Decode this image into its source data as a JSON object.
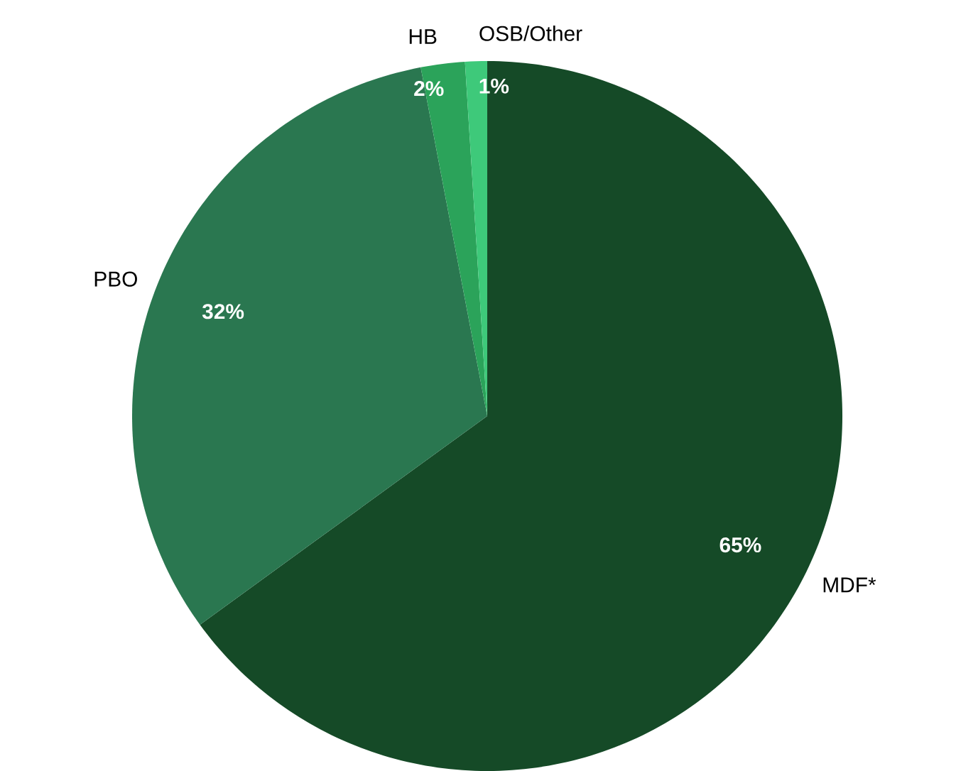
{
  "chart_data": {
    "type": "pie",
    "categories": [
      "MDF*",
      "PBO",
      "HB",
      "OSB/Other"
    ],
    "values": [
      65,
      32,
      2,
      1
    ],
    "colors": [
      "#154a27",
      "#2a7750",
      "#2ba35a",
      "#3ec97a"
    ],
    "value_labels": [
      "65%",
      "32%",
      "2%",
      "1%"
    ]
  }
}
